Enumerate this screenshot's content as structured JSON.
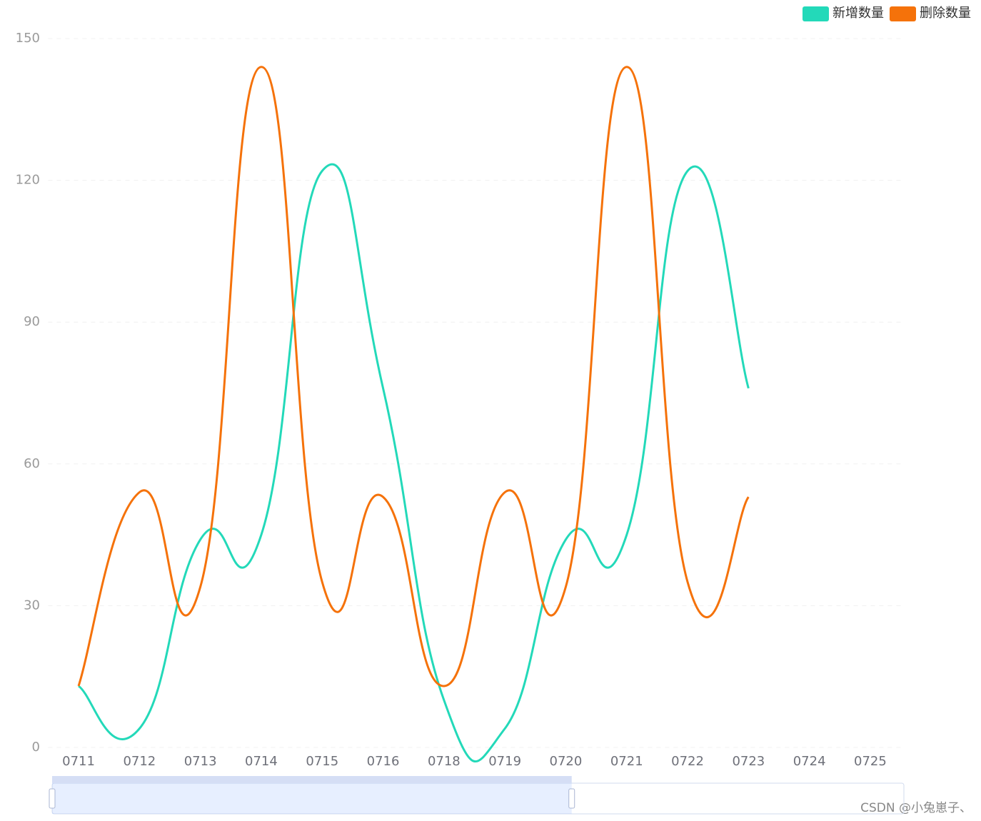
{
  "chart_data": {
    "type": "line",
    "categories": [
      "0711",
      "0712",
      "0713",
      "0714",
      "0715",
      "0716",
      "0718",
      "0719",
      "0720",
      "0721",
      "0722",
      "0723",
      "0724",
      "0725"
    ],
    "series": [
      {
        "name": "新增数量",
        "color": "#23d9b9",
        "values": [
          13,
          4,
          44,
          45,
          122,
          76,
          10,
          4,
          44,
          45,
          122,
          76,
          null,
          null
        ]
      },
      {
        "name": "删除数量",
        "color": "#f5720a",
        "values": [
          13,
          54,
          34,
          144,
          35,
          53,
          13,
          54,
          34,
          144,
          35,
          53,
          null,
          null
        ]
      }
    ],
    "ylim": [
      0,
      150
    ],
    "yticks": [
      0,
      30,
      60,
      90,
      120,
      150
    ],
    "grid": true,
    "smooth": true,
    "legend": "top-right",
    "dataZoom": {
      "start": 0,
      "end": 61
    },
    "watermark": "CSDN @小兔崽子、"
  }
}
